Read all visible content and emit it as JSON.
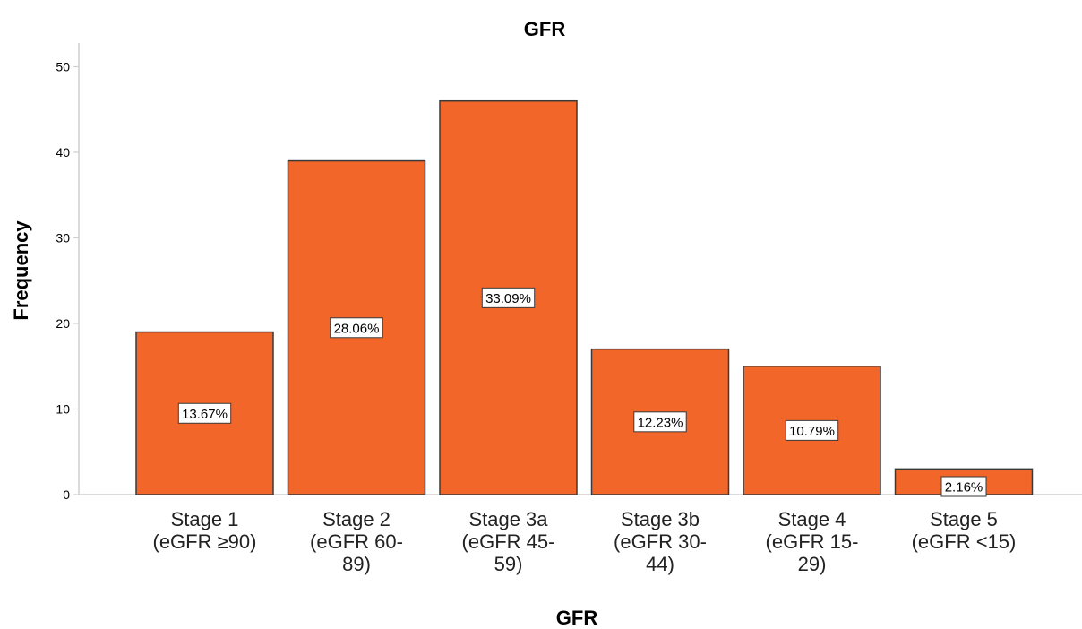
{
  "chart_data": {
    "type": "bar",
    "title": "GFR",
    "xlabel": "GFR",
    "ylabel": "Frequency",
    "ylim": [
      0,
      52
    ],
    "yticks": [
      0,
      10,
      20,
      30,
      40,
      50
    ],
    "grid": false,
    "bar_color": "#F26629",
    "categories": [
      [
        "Stage 1",
        "(eGFR ≥90)"
      ],
      [
        "Stage 2",
        "(eGFR 60-",
        "89)"
      ],
      [
        "Stage 3a",
        "(eGFR 45-",
        "59)"
      ],
      [
        "Stage 3b",
        "(eGFR 30-",
        "44)"
      ],
      [
        "Stage 4",
        "(eGFR 15-",
        "29)"
      ],
      [
        "Stage 5",
        "(eGFR <15)"
      ]
    ],
    "values": [
      19,
      39,
      46,
      17,
      15,
      3
    ],
    "data_labels": [
      "13.67%",
      "28.06%",
      "33.09%",
      "12.23%",
      "10.79%",
      "2.16%"
    ]
  }
}
